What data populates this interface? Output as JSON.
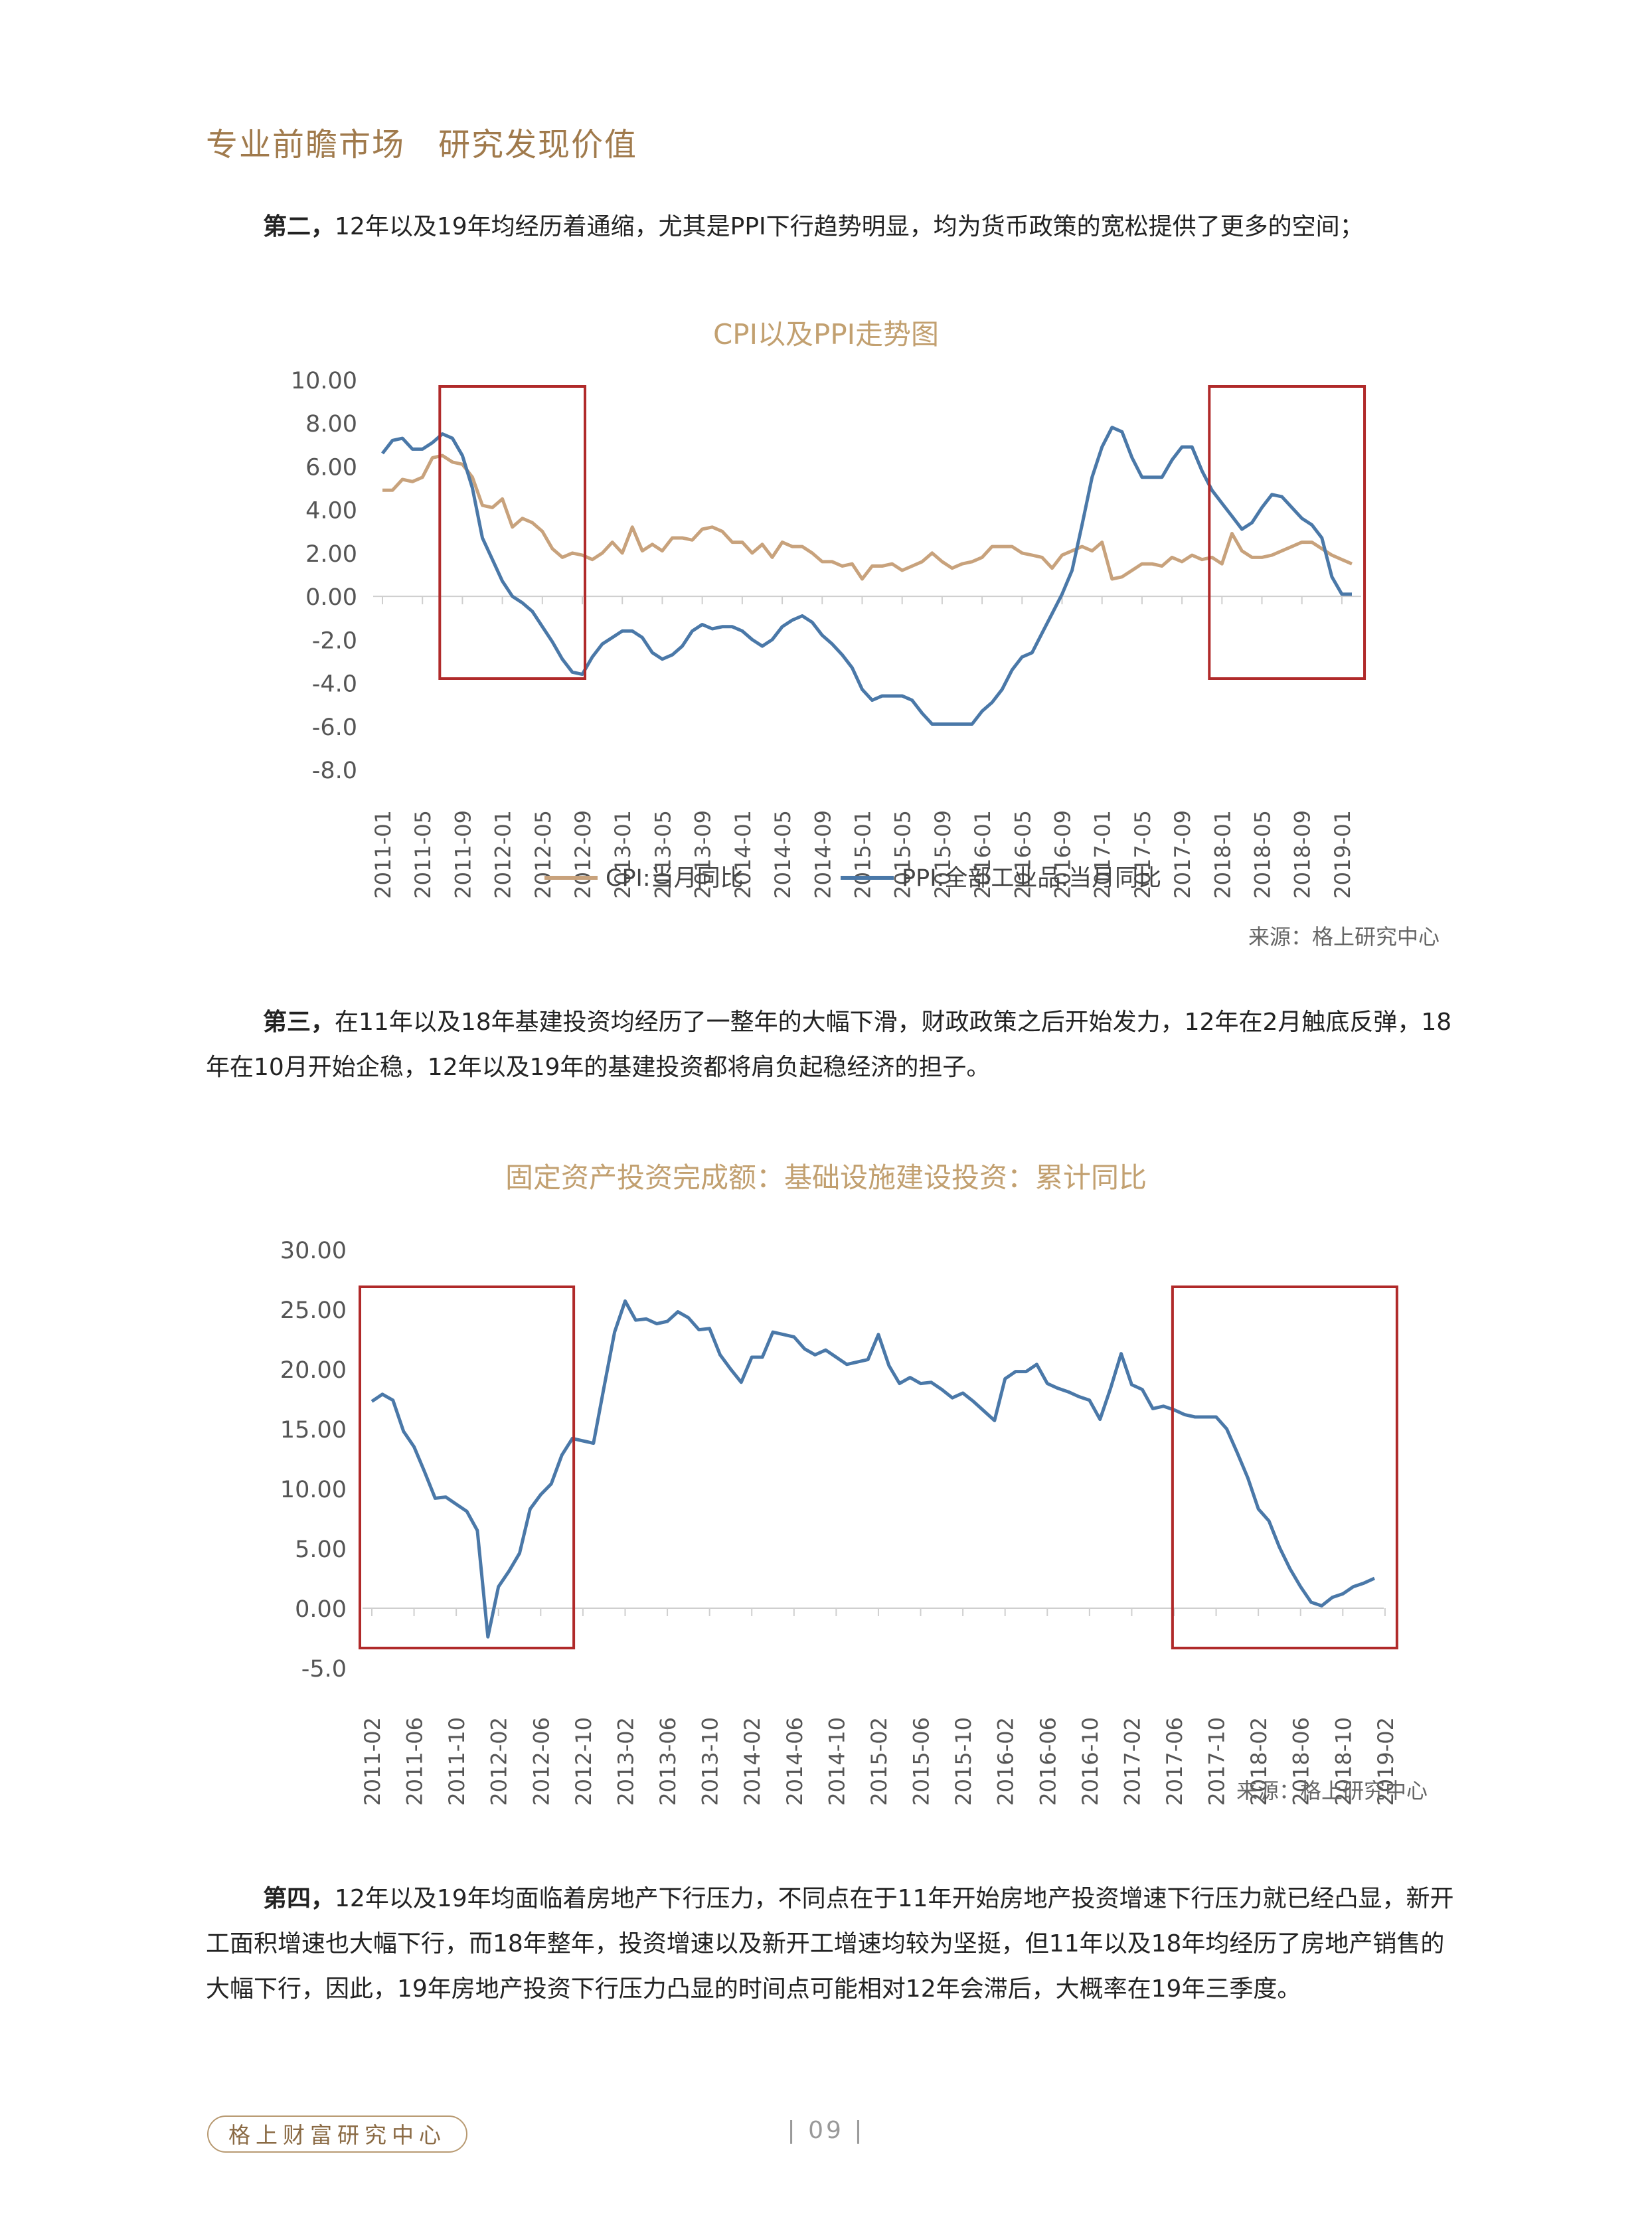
{
  "header": {
    "slogan": "专业前瞻市场　研究发现价值"
  },
  "para2": {
    "lead": "第二，",
    "text": "12年以及19年均经历着通缩，尤其是PPI下行趋势明显，均为货币政策的宽松提供了更多的空间；"
  },
  "para3": {
    "lead": "第三，",
    "text": "在11年以及18年基建投资均经历了一整年的大幅下滑，财政政策之后开始发力，12年在2月触底反弹，18年在10月开始企稳，12年以及19年的基建投资都将肩负起稳经济的担子。"
  },
  "para4": {
    "lead": "第四，",
    "text": "12年以及19年均面临着房地产下行压力，不同点在于11年开始房地产投资增速下行压力就已经凸显，新开工面积增速也大幅下行，而18年整年，投资增速以及新开工增速均较为坚挺，但11年以及18年均经历了房地产销售的大幅下行，因此，19年房地产投资下行压力凸显的时间点可能相对12年会滞后，大概率在19年三季度。"
  },
  "source1": "来源：格上研究中心",
  "source2": "来源：格上研究中心",
  "footer": {
    "org": "格上财富研究中心",
    "page": "| 09 |"
  },
  "colors": {
    "cpi": "#c8a27c",
    "ppi": "#4a78a8",
    "infra": "#4a78a8",
    "box": "#b02a2a"
  },
  "chart_data": [
    {
      "type": "line",
      "title": "CPI以及PPI走势图",
      "ylim": [
        -8,
        10
      ],
      "y_ticks": [
        "10.00",
        "8.00",
        "6.00",
        "4.00",
        "2.00",
        "0.00",
        "-2.0",
        "-4.0",
        "-6.0",
        "-8.0"
      ],
      "x_ticks": [
        "2011-01",
        "2011-05",
        "2011-09",
        "2012-01",
        "2012-05",
        "2012-09",
        "2013-01",
        "2013-05",
        "2013-09",
        "2014-01",
        "2014-05",
        "2014-09",
        "2015-01",
        "2015-05",
        "2015-09",
        "2016-01",
        "2016-05",
        "2016-09",
        "2017-01",
        "2017-05",
        "2017-09",
        "2018-01",
        "2018-05",
        "2018-09",
        "2019-01"
      ],
      "highlight_boxes": [
        [
          "2011-07",
          "2012-09"
        ],
        [
          "2017-12",
          "2019-03"
        ]
      ],
      "legend": "bottom",
      "series": [
        {
          "name": "CPI:当月同比",
          "values": [
            4.9,
            4.9,
            5.4,
            5.3,
            5.5,
            6.4,
            6.5,
            6.2,
            6.1,
            5.5,
            4.2,
            4.1,
            4.5,
            3.2,
            3.6,
            3.4,
            3.0,
            2.2,
            1.8,
            2.0,
            1.9,
            1.7,
            2.0,
            2.5,
            2.0,
            3.2,
            2.1,
            2.4,
            2.1,
            2.7,
            2.7,
            2.6,
            3.1,
            3.2,
            3.0,
            2.5,
            2.5,
            2.0,
            2.4,
            1.8,
            2.5,
            2.3,
            2.3,
            2.0,
            1.6,
            1.6,
            1.4,
            1.5,
            0.8,
            1.4,
            1.4,
            1.5,
            1.2,
            1.4,
            1.6,
            2.0,
            1.6,
            1.3,
            1.5,
            1.6,
            1.8,
            2.3,
            2.3,
            2.3,
            2.0,
            1.9,
            1.8,
            1.3,
            1.9,
            2.1,
            2.3,
            2.1,
            2.5,
            0.8,
            0.9,
            1.2,
            1.5,
            1.5,
            1.4,
            1.8,
            1.6,
            1.9,
            1.7,
            1.8,
            1.5,
            2.9,
            2.1,
            1.8,
            1.8,
            1.9,
            2.1,
            2.3,
            2.5,
            2.5,
            2.2,
            1.9,
            1.7,
            1.5
          ]
        },
        {
          "name": "PPI:全部工业品:当月同比",
          "values": [
            6.6,
            7.2,
            7.3,
            6.8,
            6.8,
            7.1,
            7.5,
            7.3,
            6.5,
            5.0,
            2.7,
            1.7,
            0.7,
            0.0,
            -0.3,
            -0.7,
            -1.4,
            -2.1,
            -2.9,
            -3.5,
            -3.6,
            -2.8,
            -2.2,
            -1.9,
            -1.6,
            -1.6,
            -1.9,
            -2.6,
            -2.9,
            -2.7,
            -2.3,
            -1.6,
            -1.3,
            -1.5,
            -1.4,
            -1.4,
            -1.6,
            -2.0,
            -2.3,
            -2.0,
            -1.4,
            -1.1,
            -0.9,
            -1.2,
            -1.8,
            -2.2,
            -2.7,
            -3.3,
            -4.3,
            -4.8,
            -4.6,
            -4.6,
            -4.6,
            -4.8,
            -5.4,
            -5.9,
            -5.9,
            -5.9,
            -5.9,
            -5.9,
            -5.3,
            -4.9,
            -4.3,
            -3.4,
            -2.8,
            -2.6,
            -1.7,
            -0.8,
            0.1,
            1.2,
            3.3,
            5.5,
            6.9,
            7.8,
            7.6,
            6.4,
            5.5,
            5.5,
            5.5,
            6.3,
            6.9,
            6.9,
            5.8,
            4.9,
            4.3,
            3.7,
            3.1,
            3.4,
            4.1,
            4.7,
            4.6,
            4.1,
            3.6,
            3.3,
            2.7,
            0.9,
            0.1,
            0.1
          ]
        }
      ]
    },
    {
      "type": "line",
      "title": "固定资产投资完成额：基础设施建设投资：累计同比",
      "ylim": [
        -5,
        30
      ],
      "y_ticks": [
        "30.00",
        "25.00",
        "20.00",
        "15.00",
        "10.00",
        "5.00",
        "0.00",
        "-5.0"
      ],
      "x_ticks": [
        "2011-02",
        "2011-06",
        "2011-10",
        "2012-02",
        "2012-06",
        "2012-10",
        "2013-02",
        "2013-06",
        "2013-10",
        "2014-02",
        "2014-06",
        "2014-10",
        "2015-02",
        "2015-06",
        "2015-10",
        "2016-02",
        "2016-06",
        "2016-10",
        "2017-02",
        "2017-06",
        "2017-10",
        "2018-02",
        "2018-06",
        "2018-10",
        "2019-02"
      ],
      "highlight_boxes": [
        [
          "2011-02",
          "2012-08"
        ],
        [
          "2017-07",
          "2019-02"
        ]
      ],
      "series": [
        {
          "name": "",
          "values": [
            17.3,
            17.9,
            17.4,
            14.8,
            13.5,
            11.4,
            9.2,
            9.3,
            8.7,
            8.1,
            6.5,
            -2.4,
            1.8,
            3.1,
            4.6,
            8.3,
            9.5,
            10.4,
            12.8,
            14.2,
            14.0,
            13.8,
            18.5,
            23.1,
            25.7,
            24.1,
            24.2,
            23.8,
            24.0,
            24.8,
            24.3,
            23.3,
            23.4,
            21.2,
            20.0,
            18.9,
            21.0,
            21.0,
            23.1,
            22.9,
            22.7,
            21.7,
            21.2,
            21.6,
            21.0,
            20.4,
            20.6,
            20.8,
            22.9,
            20.3,
            18.8,
            19.3,
            18.8,
            18.9,
            18.3,
            17.6,
            18.0,
            17.3,
            16.5,
            15.7,
            19.2,
            19.8,
            19.8,
            20.4,
            18.8,
            18.4,
            18.1,
            17.7,
            17.4,
            15.8,
            18.4,
            21.3,
            18.7,
            18.3,
            16.7,
            16.9,
            16.6,
            16.2,
            16.0,
            16.0,
            16.0,
            15.0,
            13.0,
            10.9,
            8.3,
            7.3,
            5.1,
            3.3,
            1.8,
            0.5,
            0.2,
            0.9,
            1.2,
            1.8,
            2.1,
            2.5
          ]
        }
      ]
    }
  ]
}
